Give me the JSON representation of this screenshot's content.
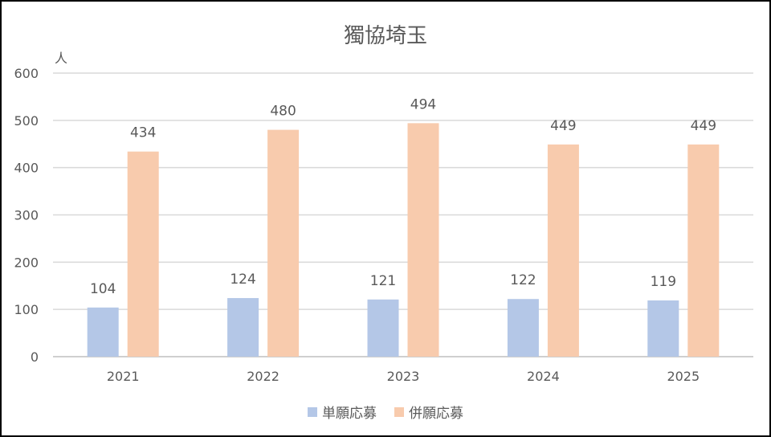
{
  "chart_data": {
    "type": "bar",
    "title": "獨協埼玉",
    "ylabel": "人",
    "xlabel": "",
    "categories": [
      "2021",
      "2022",
      "2023",
      "2024",
      "2025"
    ],
    "series": [
      {
        "name": "単願応募",
        "color": "#b4c7e7",
        "values": [
          104,
          124,
          121,
          122,
          119
        ]
      },
      {
        "name": "併願応募",
        "color": "#f8cbad",
        "values": [
          434,
          480,
          494,
          449,
          449
        ]
      }
    ],
    "ylim": [
      0,
      600
    ],
    "yticks": [
      0,
      100,
      200,
      300,
      400,
      500,
      600
    ],
    "grid": true,
    "legend_position": "bottom",
    "data_labels": true
  }
}
